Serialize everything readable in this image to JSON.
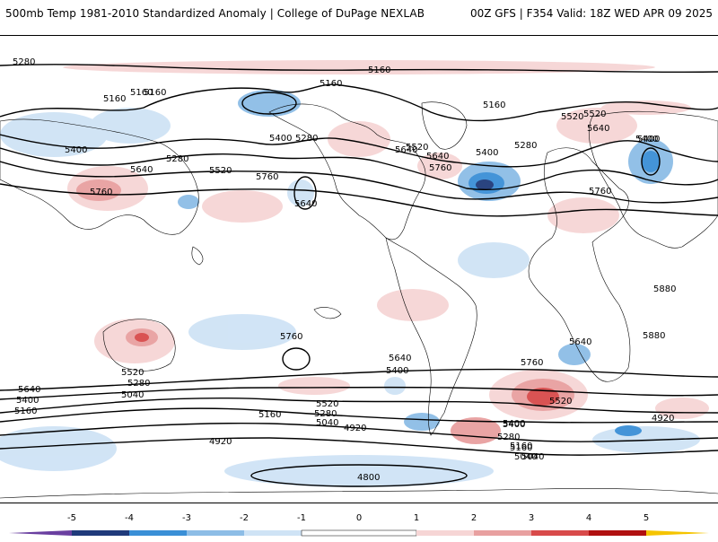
{
  "header": {
    "title_left": "500mb Temp 1981-2010 Standardized Anomaly | College of DuPage NEXLAB",
    "title_right": "00Z GFS | F354 Valid: 18Z WED APR 09 2025"
  },
  "map": {
    "contour_labels": [
      "5280",
      "5160",
      "5160",
      "5160",
      "5160",
      "5160",
      "5400",
      "5280",
      "5400",
      "5520",
      "5640",
      "5760",
      "5520",
      "5280",
      "5640",
      "5760",
      "5280",
      "5400",
      "5640",
      "5520",
      "5640",
      "5760",
      "5760",
      "5640",
      "5520",
      "5400",
      "5160",
      "5880",
      "5880",
      "5760",
      "5760",
      "5640",
      "5640",
      "5400",
      "5520",
      "5280",
      "5040",
      "5640",
      "5400",
      "5160",
      "5040",
      "4920",
      "5160",
      "5040",
      "5280",
      "5520",
      "5400",
      "5280",
      "5160",
      "5040",
      "4920",
      "4920",
      "4800",
      "5520",
      "5400",
      "5160",
      "5400"
    ]
  },
  "colorbar": {
    "ticks": [
      "-5",
      "-4",
      "-3",
      "-2",
      "-1",
      "0",
      "1",
      "2",
      "3",
      "4",
      "5"
    ],
    "colors": {
      "neg5": "#6a3fa0",
      "neg4": "#1f3a7a",
      "neg3": "#3a8fd6",
      "neg2": "#8dbde6",
      "neg1": "#cfe3f5",
      "zero": "#ffffff",
      "pos1": "#f6d5d5",
      "pos2": "#e8a0a0",
      "pos3": "#d84a4a",
      "pos4": "#b01010",
      "pos5": "#7a0000",
      "pos6": "#f5c400"
    }
  }
}
